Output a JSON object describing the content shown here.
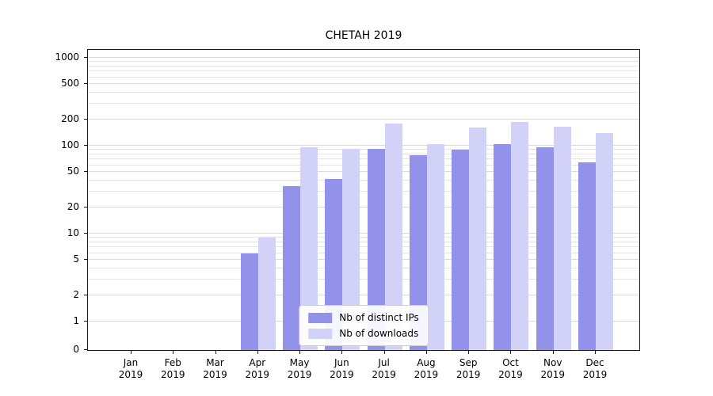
{
  "chart_data": {
    "type": "bar",
    "title": "CHETAH 2019",
    "y_scale": "symlog",
    "grid": true,
    "legend_position": "lower center",
    "x_categories_line1": [
      "Jan",
      "Feb",
      "Mar",
      "Apr",
      "May",
      "Jun",
      "Jul",
      "Aug",
      "Sep",
      "Oct",
      "Nov",
      "Dec"
    ],
    "x_categories_line2": "2019",
    "y_ticks": [
      0,
      1,
      2,
      5,
      10,
      20,
      50,
      100,
      200,
      500,
      1000
    ],
    "ylim": [
      0,
      1200
    ],
    "series": [
      {
        "name": "Nb of distinct IPs",
        "color": "#9292ea",
        "values": [
          0,
          0,
          0,
          6,
          35,
          42,
          93,
          78,
          90,
          105,
          95,
          65
        ]
      },
      {
        "name": "Nb of downloads",
        "color": "#d2d2f8",
        "values": [
          0,
          0,
          0,
          9,
          95,
          93,
          180,
          105,
          160,
          185,
          165,
          140
        ]
      }
    ],
    "colors": {
      "grid": "#e4e4e4",
      "axis": "#1a1a1a",
      "bar_distinct_ips": "#9292ea",
      "bar_downloads": "#d2d2f8"
    }
  }
}
